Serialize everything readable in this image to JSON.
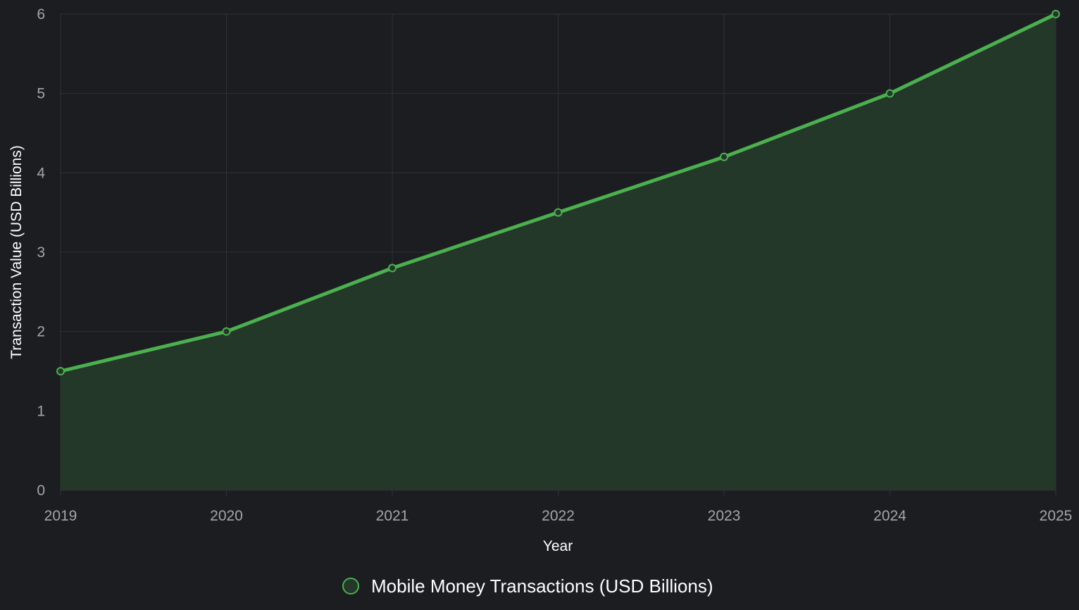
{
  "chart_data": {
    "type": "area",
    "x": [
      "2019",
      "2020",
      "2021",
      "2022",
      "2023",
      "2024",
      "2025"
    ],
    "series": [
      {
        "name": "Mobile Money Transactions (USD Billions)",
        "values": [
          1.5,
          2.0,
          2.8,
          3.5,
          4.2,
          5.0,
          6.0
        ],
        "color": "#4caf50",
        "fill": "#243829"
      }
    ],
    "xlabel": "Year",
    "ylabel": "Transaction Value (USD Billions)",
    "ylim": [
      0,
      6
    ],
    "yticks": [
      0,
      1,
      2,
      3,
      4,
      5,
      6
    ],
    "grid": true,
    "legend": "bottom-center"
  },
  "colors": {
    "background": "#1c1d21",
    "grid": "#2f3136",
    "tick_label": "#a3a5aa",
    "axis_title": "#ffffff"
  }
}
